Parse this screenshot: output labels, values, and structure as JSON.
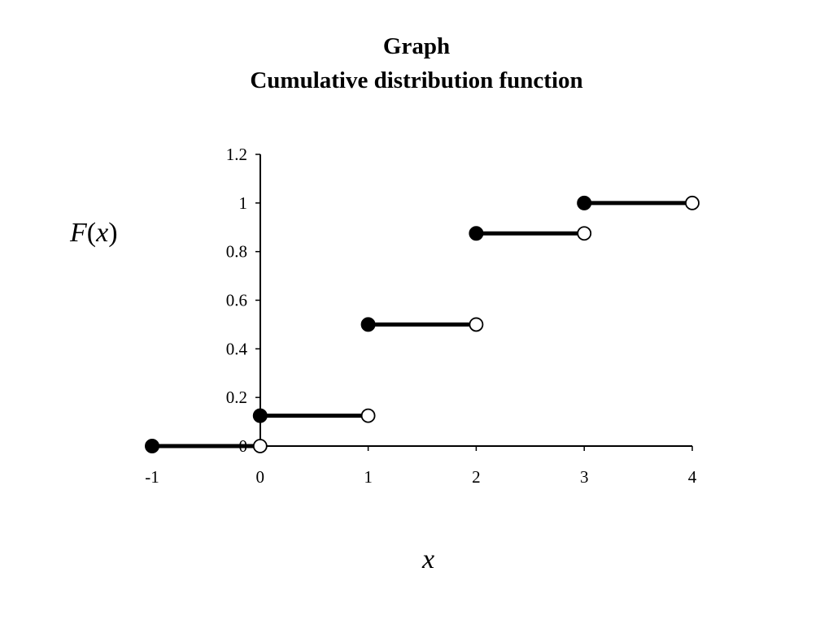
{
  "title": "Graph",
  "subtitle": "Cumulative distribution function",
  "chart_data": {
    "type": "line",
    "title": "Graph",
    "subtitle": "Cumulative distribution function",
    "xlabel": "x",
    "ylabel_function": "F",
    "ylabel_arg": "x",
    "xlim": [
      -1,
      4
    ],
    "ylim": [
      0,
      1.2
    ],
    "x_ticks": [
      "-1",
      "0",
      "1",
      "2",
      "3",
      "4"
    ],
    "y_ticks": [
      "0",
      "0.2",
      "0.4",
      "0.6",
      "0.8",
      "1",
      "1.2"
    ],
    "grid": false,
    "legend": "none",
    "segments": [
      {
        "x_start": -1,
        "x_end": 0,
        "y": 0
      },
      {
        "x_start": 0,
        "x_end": 1,
        "y": 0.125
      },
      {
        "x_start": 1,
        "x_end": 2,
        "y": 0.5
      },
      {
        "x_start": 2,
        "x_end": 3,
        "y": 0.875
      },
      {
        "x_start": 3,
        "x_end": 4,
        "y": 1
      }
    ],
    "closed_points": [
      {
        "x": -1,
        "y": 0
      },
      {
        "x": 0,
        "y": 0.125
      },
      {
        "x": 1,
        "y": 0.5
      },
      {
        "x": 2,
        "y": 0.875
      },
      {
        "x": 3,
        "y": 1
      }
    ],
    "open_points": [
      {
        "x": 0,
        "y": 0
      },
      {
        "x": 1,
        "y": 0.125
      },
      {
        "x": 2,
        "y": 0.5
      },
      {
        "x": 3,
        "y": 0.875
      },
      {
        "x": 4,
        "y": 1
      }
    ],
    "colors": {
      "line": "#000000",
      "open_fill": "#ffffff"
    }
  }
}
